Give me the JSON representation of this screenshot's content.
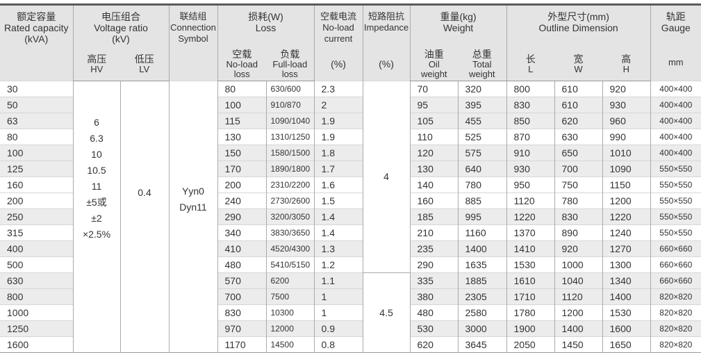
{
  "header": {
    "capacity": {
      "zh": "额定容量",
      "en": "Rated capacity",
      "unit": "(kVA)"
    },
    "voltage": {
      "zh": "电压组合",
      "en": "Voltage ratio",
      "unit": "(kV)",
      "hv_zh": "高压",
      "hv_en": "HV",
      "lv_zh": "低压",
      "lv_en": "LV"
    },
    "connection": {
      "zh": "联结组",
      "en1": "Connection",
      "en2": "Symbol"
    },
    "loss": {
      "zh": "损耗(W)",
      "en": "Loss",
      "noload_zh": "空载",
      "noload_en1": "No-load",
      "noload_en2": "loss",
      "full_zh": "负载",
      "full_en1": "Full-load",
      "full_en2": "loss"
    },
    "current": {
      "zh": "空载电流",
      "en1": "No-load",
      "en2": "current",
      "unit": "(%)"
    },
    "impedance": {
      "zh": "短路阻抗",
      "en": "Impedance",
      "unit": "(%)"
    },
    "weight": {
      "zh": "重量(kg)",
      "en": "Weight",
      "oil_zh": "油重",
      "oil_en1": "Oil",
      "oil_en2": "weight",
      "total_zh": "总重",
      "total_en1": "Total",
      "total_en2": "weight"
    },
    "dimension": {
      "zh": "外型尺寸(mm)",
      "en": "Outline Dimension",
      "l_zh": "长",
      "l_en": "L",
      "w_zh": "宽",
      "w_en": "W",
      "h_zh": "高",
      "h_en": "H"
    },
    "gauge": {
      "zh": "轨距",
      "en": "Gauge",
      "unit": "mm"
    }
  },
  "merged": {
    "hv_lines": [
      "6",
      "6.3",
      "10",
      "10.5",
      "11",
      "±5或",
      "±2",
      "×2.5%"
    ],
    "lv": "0.4",
    "connection_lines": [
      "Yyn0",
      "Dyn11"
    ],
    "impedance_groups": [
      {
        "value": "4",
        "rows": 12
      },
      {
        "value": "4.5",
        "rows": 5
      }
    ]
  },
  "rows": [
    {
      "kva": "30",
      "nl": "80",
      "fl": "630/600",
      "cur": "2.3",
      "oil": "70",
      "tot": "320",
      "L": "800",
      "W": "610",
      "H": "920",
      "gauge": "400×400",
      "shaded": false
    },
    {
      "kva": "50",
      "nl": "100",
      "fl": "910/870",
      "cur": "2",
      "oil": "95",
      "tot": "395",
      "L": "830",
      "W": "610",
      "H": "930",
      "gauge": "400×400",
      "shaded": true
    },
    {
      "kva": "63",
      "nl": "115",
      "fl": "1090/1040",
      "cur": "1.9",
      "oil": "105",
      "tot": "455",
      "L": "850",
      "W": "620",
      "H": "960",
      "gauge": "400×400",
      "shaded": true
    },
    {
      "kva": "80",
      "nl": "130",
      "fl": "1310/1250",
      "cur": "1.9",
      "oil": "110",
      "tot": "525",
      "L": "870",
      "W": "630",
      "H": "990",
      "gauge": "400×400",
      "shaded": false
    },
    {
      "kva": "100",
      "nl": "150",
      "fl": "1580/1500",
      "cur": "1.8",
      "oil": "120",
      "tot": "575",
      "L": "910",
      "W": "650",
      "H": "1010",
      "gauge": "400×400",
      "shaded": true
    },
    {
      "kva": "125",
      "nl": "170",
      "fl": "1890/1800",
      "cur": "1.7",
      "oil": "130",
      "tot": "640",
      "L": "930",
      "W": "700",
      "H": "1090",
      "gauge": "550×550",
      "shaded": true
    },
    {
      "kva": "160",
      "nl": "200",
      "fl": "2310/2200",
      "cur": "1.6",
      "oil": "140",
      "tot": "780",
      "L": "950",
      "W": "750",
      "H": "1150",
      "gauge": "550×550",
      "shaded": false
    },
    {
      "kva": "200",
      "nl": "240",
      "fl": "2730/2600",
      "cur": "1.5",
      "oil": "160",
      "tot": "885",
      "L": "1120",
      "W": "780",
      "H": "1200",
      "gauge": "550×550",
      "shaded": false
    },
    {
      "kva": "250",
      "nl": "290",
      "fl": "3200/3050",
      "cur": "1.4",
      "oil": "185",
      "tot": "995",
      "L": "1220",
      "W": "830",
      "H": "1220",
      "gauge": "550×550",
      "shaded": true
    },
    {
      "kva": "315",
      "nl": "340",
      "fl": "3830/3650",
      "cur": "1.4",
      "oil": "210",
      "tot": "1160",
      "L": "1370",
      "W": "890",
      "H": "1240",
      "gauge": "550×550",
      "shaded": false
    },
    {
      "kva": "400",
      "nl": "410",
      "fl": "4520/4300",
      "cur": "1.3",
      "oil": "235",
      "tot": "1400",
      "L": "1410",
      "W": "920",
      "H": "1270",
      "gauge": "660×660",
      "shaded": true
    },
    {
      "kva": "500",
      "nl": "480",
      "fl": "5410/5150",
      "cur": "1.2",
      "oil": "290",
      "tot": "1635",
      "L": "1530",
      "W": "1000",
      "H": "1300",
      "gauge": "660×660",
      "shaded": false
    },
    {
      "kva": "630",
      "nl": "570",
      "fl": "6200",
      "cur": "1.1",
      "oil": "335",
      "tot": "1885",
      "L": "1610",
      "W": "1040",
      "H": "1340",
      "gauge": "660×660",
      "shaded": true
    },
    {
      "kva": "800",
      "nl": "700",
      "fl": "7500",
      "cur": "1",
      "oil": "380",
      "tot": "2305",
      "L": "1710",
      "W": "1120",
      "H": "1400",
      "gauge": "820×820",
      "shaded": true
    },
    {
      "kva": "1000",
      "nl": "830",
      "fl": "10300",
      "cur": "1",
      "oil": "480",
      "tot": "2580",
      "L": "1780",
      "W": "1200",
      "H": "1530",
      "gauge": "820×820",
      "shaded": false
    },
    {
      "kva": "1250",
      "nl": "970",
      "fl": "12000",
      "cur": "0.9",
      "oil": "530",
      "tot": "3000",
      "L": "1900",
      "W": "1400",
      "H": "1600",
      "gauge": "820×820",
      "shaded": true
    },
    {
      "kva": "1600",
      "nl": "1170",
      "fl": "14500",
      "cur": "0.8",
      "oil": "620",
      "tot": "3645",
      "L": "2050",
      "W": "1450",
      "H": "1650",
      "gauge": "820×820",
      "shaded": false
    }
  ],
  "colors": {
    "header_bg": "#e4e4e4",
    "stripe": "#ececec",
    "top_rule": "#5a5a5a"
  }
}
